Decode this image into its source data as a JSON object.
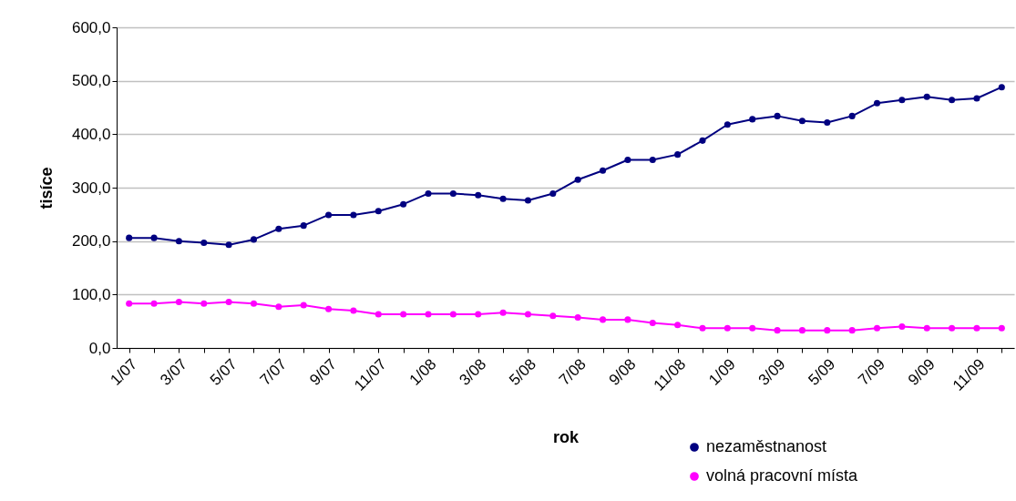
{
  "chart_data": {
    "type": "line",
    "xlabel": "rok",
    "ylabel": "tisíce",
    "categories": [
      "1/07",
      null,
      "3/07",
      null,
      "5/07",
      null,
      "7/07",
      null,
      "9/07",
      null,
      "11/07",
      null,
      "1/08",
      null,
      "3/08",
      null,
      "5/08",
      null,
      "7/08",
      null,
      "9/08",
      null,
      "11/08",
      null,
      "1/09",
      null,
      "3/09",
      null,
      "5/09",
      null,
      "7/09",
      null,
      "9/09",
      null,
      "11/09",
      null
    ],
    "series": [
      {
        "name": "nezaměstnanost",
        "color": "#000080",
        "values": [
          206,
          206,
          200,
          197,
          193,
          203,
          223,
          229,
          249,
          249,
          256,
          269,
          289,
          289,
          286,
          279,
          276,
          289,
          315,
          332,
          352,
          352,
          362,
          388,
          418,
          428,
          434,
          425,
          422,
          434,
          458,
          464,
          470,
          464,
          467,
          488
        ]
      },
      {
        "name": "volná pracovní místa",
        "color": "#ff00ff",
        "values": [
          83,
          83,
          86,
          83,
          86,
          83,
          77,
          80,
          73,
          70,
          63,
          63,
          63,
          63,
          63,
          66,
          63,
          60,
          57,
          53,
          53,
          47,
          43,
          37,
          37,
          37,
          33,
          33,
          33,
          33,
          37,
          40,
          37,
          37,
          37,
          37
        ]
      }
    ],
    "ylim": [
      0,
      600
    ],
    "yticks": [
      {
        "value": 0,
        "label": "0,0"
      },
      {
        "value": 100,
        "label": "100,0"
      },
      {
        "value": 200,
        "label": "200,0"
      },
      {
        "value": 300,
        "label": "300,0"
      },
      {
        "value": 400,
        "label": "400,0"
      },
      {
        "value": 500,
        "label": "500,0"
      },
      {
        "value": 600,
        "label": "600,0"
      }
    ],
    "grid": "y",
    "legend": "bottom right",
    "marker": "circle",
    "line_style": "solid"
  }
}
